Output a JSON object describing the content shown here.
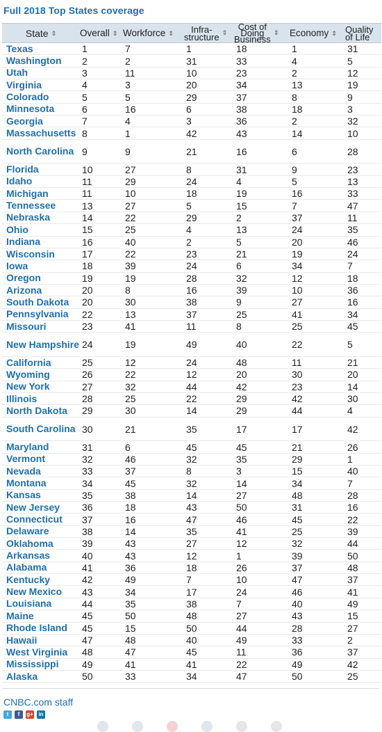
{
  "title": "Full 2018 Top States coverage",
  "columns": [
    "State",
    "Overall",
    "Workforce",
    "Infra-\nstructure",
    "Cost of\nDoing\nBusiness",
    "Economy",
    "Quality\nof Life"
  ],
  "sort_glyph": "⇕",
  "rows": [
    [
      "Texas",
      "1",
      "7",
      "1",
      "18",
      "1",
      "31"
    ],
    [
      "Washington",
      "2",
      "2",
      "31",
      "33",
      "4",
      "5"
    ],
    [
      "Utah",
      "3",
      "11",
      "10",
      "23",
      "2",
      "12"
    ],
    [
      "Virginia",
      "4",
      "3",
      "20",
      "34",
      "13",
      "19"
    ],
    [
      "Colorado",
      "5",
      "5",
      "29",
      "37",
      "8",
      "9"
    ],
    [
      "Minnesota",
      "6",
      "16",
      "6",
      "38",
      "18",
      "3"
    ],
    [
      "Georgia",
      "7",
      "4",
      "3",
      "36",
      "2",
      "32"
    ],
    [
      "Massachusetts",
      "8",
      "1",
      "42",
      "43",
      "14",
      "10"
    ],
    [
      "North Carolina",
      "9",
      "9",
      "21",
      "16",
      "6",
      "28"
    ],
    [
      "Florida",
      "10",
      "27",
      "8",
      "31",
      "9",
      "23"
    ],
    [
      "Idaho",
      "11",
      "29",
      "24",
      "4",
      "5",
      "13"
    ],
    [
      "Michigan",
      "11",
      "10",
      "18",
      "19",
      "16",
      "33"
    ],
    [
      "Tennessee",
      "13",
      "27",
      "5",
      "15",
      "7",
      "47"
    ],
    [
      "Nebraska",
      "14",
      "22",
      "29",
      "2",
      "37",
      "11"
    ],
    [
      "Ohio",
      "15",
      "25",
      "4",
      "13",
      "24",
      "35"
    ],
    [
      "Indiana",
      "16",
      "40",
      "2",
      "5",
      "20",
      "46"
    ],
    [
      "Wisconsin",
      "17",
      "22",
      "23",
      "21",
      "19",
      "24"
    ],
    [
      "Iowa",
      "18",
      "39",
      "24",
      "6",
      "34",
      "7"
    ],
    [
      "Oregon",
      "19",
      "19",
      "28",
      "32",
      "12",
      "18"
    ],
    [
      "Arizona",
      "20",
      "8",
      "16",
      "39",
      "10",
      "36"
    ],
    [
      "South Dakota",
      "20",
      "30",
      "38",
      "9",
      "27",
      "16"
    ],
    [
      "Pennsylvania",
      "22",
      "13",
      "37",
      "25",
      "41",
      "34"
    ],
    [
      "Missouri",
      "23",
      "41",
      "11",
      "8",
      "25",
      "45"
    ],
    [
      "New Hampshire",
      "24",
      "19",
      "49",
      "40",
      "22",
      "5"
    ],
    [
      "California",
      "25",
      "12",
      "24",
      "48",
      "11",
      "21"
    ],
    [
      "Wyoming",
      "26",
      "22",
      "12",
      "20",
      "30",
      "20"
    ],
    [
      "New York",
      "27",
      "32",
      "44",
      "42",
      "23",
      "14"
    ],
    [
      "Illinois",
      "28",
      "25",
      "22",
      "29",
      "42",
      "30"
    ],
    [
      "North Dakota",
      "29",
      "30",
      "14",
      "29",
      "44",
      "4"
    ],
    [
      "South Carolina",
      "30",
      "21",
      "35",
      "17",
      "17",
      "42"
    ],
    [
      "Maryland",
      "31",
      "6",
      "45",
      "45",
      "21",
      "26"
    ],
    [
      "Vermont",
      "32",
      "46",
      "32",
      "35",
      "29",
      "1"
    ],
    [
      "Nevada",
      "33",
      "37",
      "8",
      "3",
      "15",
      "40"
    ],
    [
      "Montana",
      "34",
      "45",
      "32",
      "14",
      "34",
      "7"
    ],
    [
      "Kansas",
      "35",
      "38",
      "14",
      "27",
      "48",
      "28"
    ],
    [
      "New Jersey",
      "36",
      "18",
      "43",
      "50",
      "31",
      "16"
    ],
    [
      "Connecticut",
      "37",
      "16",
      "47",
      "46",
      "45",
      "22"
    ],
    [
      "Delaware",
      "38",
      "14",
      "35",
      "41",
      "25",
      "39"
    ],
    [
      "Oklahoma",
      "39",
      "43",
      "27",
      "12",
      "32",
      "44"
    ],
    [
      "Arkansas",
      "40",
      "43",
      "12",
      "1",
      "39",
      "50"
    ],
    [
      "Alabama",
      "41",
      "36",
      "18",
      "26",
      "37",
      "48"
    ],
    [
      "Kentucky",
      "42",
      "49",
      "7",
      "10",
      "47",
      "37"
    ],
    [
      "New Mexico",
      "43",
      "34",
      "17",
      "24",
      "46",
      "41"
    ],
    [
      "Louisiana",
      "44",
      "35",
      "38",
      "7",
      "40",
      "49"
    ],
    [
      "Maine",
      "45",
      "50",
      "48",
      "27",
      "43",
      "15"
    ],
    [
      "Rhode Island",
      "45",
      "15",
      "50",
      "44",
      "28",
      "27"
    ],
    [
      "Hawaii",
      "47",
      "48",
      "40",
      "49",
      "33",
      "2"
    ],
    [
      "West Virginia",
      "48",
      "47",
      "45",
      "11",
      "36",
      "37"
    ],
    [
      "Mississippi",
      "49",
      "41",
      "41",
      "22",
      "49",
      "42"
    ],
    [
      "Alaska",
      "50",
      "33",
      "34",
      "47",
      "50",
      "25"
    ]
  ],
  "tall_rows": [
    "North Carolina",
    "New Hampshire",
    "South Carolina"
  ],
  "author": "CNBC.com staff",
  "social": [
    {
      "name": "twitter",
      "glyph": "t",
      "color": "#3fa8e0"
    },
    {
      "name": "facebook",
      "glyph": "f",
      "color": "#3b5998"
    },
    {
      "name": "google-plus",
      "glyph": "g+",
      "color": "#d34836"
    },
    {
      "name": "linkedin",
      "glyph": "in",
      "color": "#0e76a8"
    }
  ],
  "colors": {
    "accent": "#1f6fae",
    "header_bg": "#d9e3ec"
  }
}
